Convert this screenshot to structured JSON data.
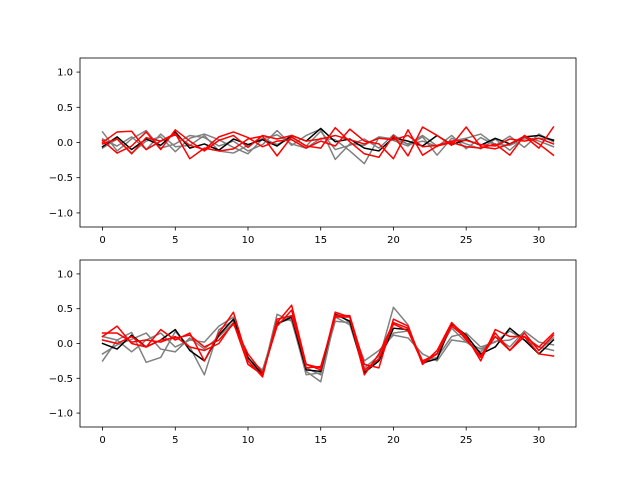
{
  "chart_data": [
    {
      "type": "line",
      "ylim": [
        -1.2,
        1.2
      ],
      "xlim": [
        -1.55,
        32.55
      ],
      "xticks": [
        0,
        5,
        10,
        15,
        20,
        25,
        30
      ],
      "yticks": [
        -1.0,
        -0.5,
        0.0,
        0.5,
        1.0
      ],
      "xtick_labels": [
        "0",
        "5",
        "10",
        "15",
        "20",
        "25",
        "30"
      ],
      "ytick_labels": [
        "−1.0",
        "−0.5",
        "0.0",
        "0.5",
        "1.0"
      ],
      "grid": false,
      "series": [
        {
          "color": "#808080",
          "values": [
            0.15,
            -0.12,
            0.05,
            0.17,
            -0.08,
            -0.02,
            0.1,
            0.07,
            -0.05,
            0.02,
            -0.12,
            -0.03,
            0.17,
            -0.04,
            0.1,
            0.19,
            -0.24,
            -0.02,
            -0.04,
            0.08,
            0.05,
            -0.02,
            0.1,
            -0.05,
            0.02,
            0.06,
            0.12,
            -0.03,
            -0.04,
            0.05,
            0.06,
            0.04
          ]
        },
        {
          "color": "#808080",
          "values": [
            -0.08,
            0.05,
            -0.15,
            0.02,
            0.08,
            -0.13,
            0.06,
            0.12,
            0.04,
            -0.07,
            -0.16,
            0.05,
            0.11,
            -0.02,
            -0.08,
            0.06,
            0.04,
            -0.12,
            -0.3,
            0.07,
            0.03,
            -0.05,
            0.08,
            -0.18,
            0.06,
            -0.02,
            -0.09,
            0.05,
            -0.11,
            0.08,
            0.02,
            -0.06
          ]
        },
        {
          "color": "#808080",
          "values": [
            0.05,
            -0.05,
            0.08,
            -0.1,
            0.12,
            -0.06,
            -0.04,
            0.1,
            -0.12,
            -0.15,
            -0.04,
            0.06,
            -0.03,
            0.07,
            -0.05,
            0.16,
            -0.1,
            -0.04,
            0.05,
            -0.08,
            0.11,
            -0.03,
            0.02,
            -0.06,
            0.1,
            -0.09,
            0.07,
            -0.04,
            0.09,
            -0.07,
            0.12,
            0.01
          ]
        },
        {
          "color": "#000000",
          "values": [
            -0.06,
            0.08,
            -0.1,
            0.05,
            -0.04,
            0.15,
            -0.08,
            -0.02,
            -0.11,
            0.05,
            -0.03,
            0.04,
            -0.05,
            0.1,
            0.02,
            0.2,
            0.01,
            0.05,
            -0.08,
            -0.12,
            0.07,
            0.02,
            -0.05,
            0.1,
            -0.03,
            0.04,
            -0.04,
            0.06,
            -0.02,
            0.08,
            0.1,
            0.03
          ]
        },
        {
          "color": "#ff0000",
          "values": [
            0.0,
            0.15,
            0.16,
            -0.1,
            0.02,
            0.13,
            -0.23,
            -0.08,
            -0.12,
            -0.09,
            0.05,
            0.09,
            -0.19,
            0.08,
            -0.05,
            -0.08,
            0.21,
            0.01,
            -0.16,
            -0.21,
            0.1,
            -0.19,
            0.22,
            0.1,
            -0.04,
            0.22,
            -0.06,
            -0.09,
            -0.02,
            0.09,
            -0.08,
            0.22
          ]
        },
        {
          "color": "#ff0000",
          "values": [
            -0.02,
            0.05,
            -0.16,
            0.07,
            0.02,
            0.11,
            -0.04,
            -0.1,
            0.08,
            0.15,
            0.07,
            -0.06,
            0.02,
            0.04,
            -0.08,
            0.02,
            -0.05,
            0.19,
            0.02,
            -0.02,
            -0.23,
            0.18,
            -0.18,
            -0.05,
            0.0,
            -0.06,
            -0.08,
            -0.02,
            -0.18,
            0.1,
            -0.02,
            -0.18
          ]
        },
        {
          "color": "#ff0000",
          "values": [
            0.03,
            -0.15,
            -0.05,
            0.15,
            -0.1,
            0.18,
            0.02,
            -0.12,
            0.03,
            0.1,
            -0.07,
            0.1,
            0.05,
            0.1,
            0.02,
            0.05,
            0.1,
            0.04,
            -0.02,
            0.06,
            0.04,
            0.1,
            -0.06,
            -0.04,
            0.02,
            0.03,
            -0.03,
            -0.05,
            0.05,
            0.02,
            0.06,
            -0.02
          ]
        }
      ]
    },
    {
      "type": "line",
      "ylim": [
        -1.2,
        1.2
      ],
      "xlim": [
        -1.55,
        32.55
      ],
      "xticks": [
        0,
        5,
        10,
        15,
        20,
        25,
        30
      ],
      "yticks": [
        -1.0,
        -0.5,
        0.0,
        0.5,
        1.0
      ],
      "xtick_labels": [
        "0",
        "5",
        "10",
        "15",
        "20",
        "25",
        "30"
      ],
      "ytick_labels": [
        "−1.0",
        "−0.5",
        "0.0",
        "0.5",
        "1.0"
      ],
      "grid": false,
      "series": [
        {
          "color": "#808080",
          "values": [
            -0.25,
            0.05,
            0.16,
            -0.27,
            -0.2,
            0.17,
            -0.05,
            -0.45,
            0.2,
            0.33,
            -0.25,
            -0.45,
            0.42,
            0.32,
            -0.4,
            -0.55,
            0.38,
            0.27,
            -0.4,
            -0.23,
            0.52,
            0.27,
            -0.3,
            -0.14,
            0.22,
            0.02,
            -0.08,
            0.03,
            0.05,
            0.15,
            -0.1,
            0.08
          ]
        },
        {
          "color": "#808080",
          "values": [
            -0.15,
            -0.02,
            0.06,
            0.15,
            -0.08,
            -0.12,
            0.08,
            -0.08,
            0.1,
            0.3,
            -0.22,
            -0.38,
            0.3,
            0.35,
            -0.45,
            -0.42,
            0.32,
            0.3,
            -0.35,
            -0.18,
            0.15,
            0.18,
            -0.25,
            -0.2,
            0.1,
            0.15,
            -0.05,
            0.02,
            0.18,
            0.05,
            -0.05,
            -0.1
          ]
        },
        {
          "color": "#808080",
          "values": [
            0.1,
            0.05,
            -0.12,
            0.05,
            0.15,
            -0.05,
            0.05,
            0.02,
            0.25,
            0.38,
            -0.3,
            -0.4,
            0.28,
            0.4,
            -0.35,
            -0.45,
            0.45,
            0.3,
            -0.25,
            -0.1,
            0.12,
            0.08,
            -0.15,
            -0.25,
            0.05,
            0.02,
            -0.12,
            0.1,
            -0.05,
            0.18,
            0.02,
            -0.02
          ]
        },
        {
          "color": "#000000",
          "values": [
            0.0,
            -0.08,
            0.12,
            -0.05,
            0.05,
            0.2,
            -0.1,
            -0.25,
            0.12,
            0.35,
            -0.2,
            -0.45,
            0.28,
            0.38,
            -0.38,
            -0.4,
            0.42,
            0.32,
            -0.42,
            -0.25,
            0.22,
            0.2,
            -0.28,
            -0.22,
            0.28,
            0.12,
            -0.15,
            -0.05,
            0.22,
            0.05,
            -0.15,
            0.05
          ]
        },
        {
          "color": "#ff0000",
          "values": [
            0.15,
            0.15,
            0.02,
            0.05,
            0.02,
            0.1,
            -0.05,
            -0.1,
            0.0,
            0.3,
            -0.3,
            -0.45,
            0.3,
            0.55,
            -0.3,
            -0.38,
            0.45,
            0.38,
            -0.38,
            -0.22,
            0.28,
            0.18,
            -0.28,
            -0.15,
            0.3,
            0.05,
            -0.18,
            0.15,
            -0.1,
            0.1,
            -0.05,
            0.15
          ]
        },
        {
          "color": "#ff0000",
          "values": [
            0.1,
            0.25,
            0.0,
            -0.05,
            0.2,
            0.05,
            0.15,
            -0.25,
            0.15,
            0.45,
            -0.25,
            -0.48,
            0.35,
            0.4,
            -0.3,
            -0.35,
            0.4,
            0.4,
            -0.3,
            -0.35,
            0.35,
            0.25,
            -0.3,
            -0.1,
            0.3,
            0.1,
            -0.25,
            0.2,
            0.1,
            0.1,
            -0.15,
            -0.18
          ]
        },
        {
          "color": "#ff0000",
          "values": [
            0.05,
            0.0,
            0.1,
            -0.05,
            0.05,
            0.08,
            0.12,
            -0.05,
            0.05,
            0.28,
            -0.15,
            -0.42,
            0.25,
            0.48,
            -0.35,
            -0.33,
            0.38,
            0.38,
            -0.45,
            -0.15,
            0.3,
            0.22,
            -0.25,
            -0.15,
            0.25,
            0.08,
            -0.2,
            0.1,
            -0.1,
            0.15,
            -0.1,
            0.12
          ]
        }
      ]
    }
  ]
}
